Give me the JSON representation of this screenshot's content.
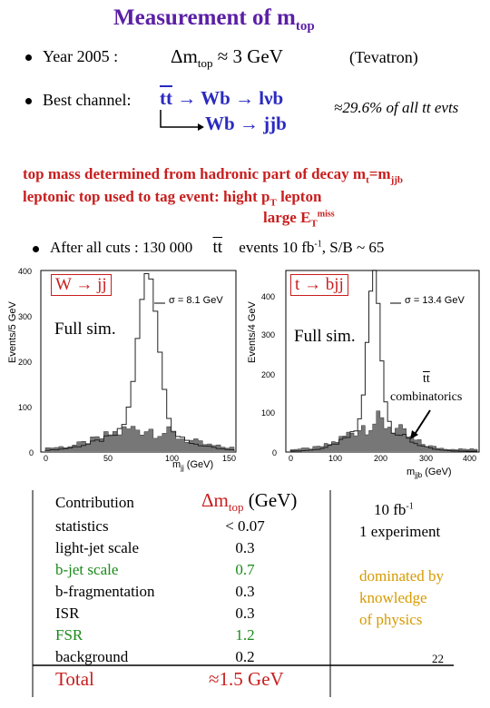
{
  "title": {
    "main": "Measurement of m",
    "sub": "top"
  },
  "line1": {
    "label": "Year 2005 :",
    "delta": "Δm",
    "delta_sub": "top",
    "value": "≈ 3 GeV",
    "note": "(Tevatron)"
  },
  "line2": {
    "label": "Best channel:",
    "tt": "tt",
    "decay1": "→ Wb → lνb",
    "decay2": "Wb → jjb",
    "fraction": "≈29.6%  of all tt evts"
  },
  "red_lines": {
    "l1_pre": "top mass determined from hadronic part of decay  m",
    "l1_sub": "t",
    "l1_mid": "=m",
    "l1_sub2": "jjb",
    "l2_pre": "leptonic top used to tag event:  hight  p",
    "l2_sub": "T",
    "l2_post": " lepton",
    "l3_pre": "large E",
    "l3_sub": "T",
    "l3_sup": "miss"
  },
  "cuts": {
    "pre": "After all cuts  : 130 000",
    "tt": "tt",
    "post": "events 10 fb",
    "sup": "-1",
    "post2": ",   S/B ~ 65"
  },
  "plot_left": {
    "label": "W → jj",
    "sim": "Full sim.",
    "sigma": "σ = 8.1 GeV",
    "ylabel": "Events/5 GeV",
    "xlabel": "m",
    "xlabel_sub": "jj",
    "xlabel_unit": " (GeV)",
    "xticks": [
      "0",
      "50",
      "100",
      "150"
    ],
    "yticks": [
      "400",
      "300",
      "200",
      "100",
      "0"
    ]
  },
  "plot_right": {
    "label": "t → bjj",
    "sim": "Full sim.",
    "sigma": "σ = 13.4 GeV",
    "ylabel": "Events/4 GeV",
    "xlabel": "m",
    "xlabel_sub": "jjb",
    "xlabel_unit": " (GeV)",
    "xticks": [
      "0",
      "100",
      "200",
      "300",
      "400"
    ],
    "yticks": [
      "400",
      "300",
      "200",
      "100",
      "0"
    ],
    "annot_tt": "tt",
    "annot": "combinatorics"
  },
  "table": {
    "col1_header": "Contribution",
    "col2_header": "Δm",
    "col2_sub": "top",
    "col2_unit": " (GeV)",
    "rows": [
      {
        "name": "statistics",
        "value": "< 0.07",
        "color": "#000000"
      },
      {
        "name": "light-jet scale",
        "value": "0.3",
        "color": "#000000"
      },
      {
        "name": "b-jet scale",
        "value": "0.7",
        "color": "#1a8a1a"
      },
      {
        "name": "b-fragmentation",
        "value": "0.3",
        "color": "#000000"
      },
      {
        "name": "ISR",
        "value": "0.3",
        "color": "#000000"
      },
      {
        "name": "FSR",
        "value": "1.2",
        "color": "#1a8a1a"
      },
      {
        "name": "background",
        "value": "0.2",
        "color": "#000000"
      }
    ],
    "total_label": "Total",
    "total_value": "≈1.5 GeV"
  },
  "side": {
    "lumi": "10 fb",
    "lumi_sup": "-1",
    "experiment": "1 experiment",
    "note1": "dominated by",
    "note2": "knowledge",
    "note3": "of physics"
  },
  "page_number": "22"
}
